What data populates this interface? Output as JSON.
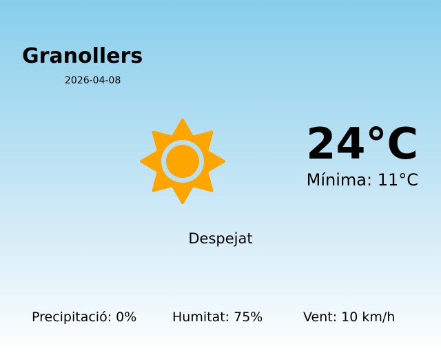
{
  "location": {
    "city": "Granollers",
    "date": "2026-04-08"
  },
  "current": {
    "temperature": "24°C",
    "minimum": "Mínima: 11°C",
    "condition": "Despejat",
    "icon": "sun-icon"
  },
  "stats": {
    "precipitation": "Precipitació: 0%",
    "humidity": "Humitat: 75%",
    "wind": "Vent: 10 km/h"
  },
  "colors": {
    "sun": "#ffa500",
    "sky_top": "#87ceeb",
    "sky_bottom": "#ffffff"
  }
}
